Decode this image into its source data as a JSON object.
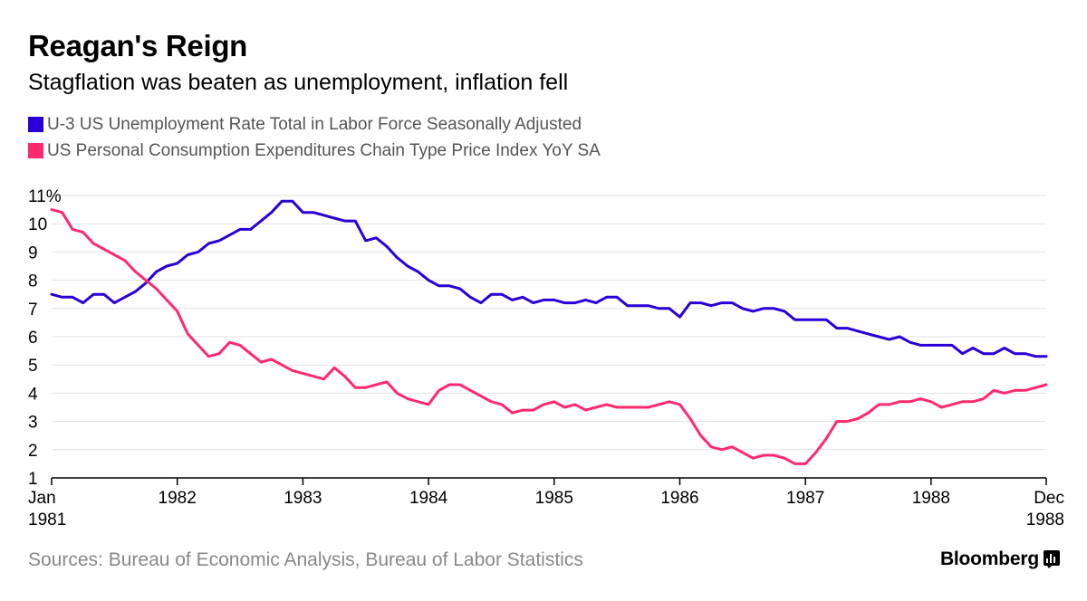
{
  "header": {
    "title": "Reagan's Reign",
    "subtitle": "Stagflation was beaten as unemployment, inflation fell"
  },
  "colors": {
    "series1": "#2800d7",
    "series2": "#ff2a6e",
    "grid": "#e2e2e2",
    "axis": "#000000"
  },
  "footer": {
    "source": "Sources: Bureau of Economic Analysis, Bureau of Labor Statistics",
    "brand": "Bloomberg",
    "brand_icon": "bloomberg-terminal-icon"
  },
  "chart_data": {
    "type": "line",
    "title": "Reagan's Reign",
    "subtitle": "Stagflation was beaten as unemployment, inflation fell",
    "x_range": [
      "1981-01",
      "1988-12"
    ],
    "ylim": [
      1,
      11
    ],
    "grid": true,
    "legend_position": "top-left",
    "y_ticks": [
      {
        "value": 11,
        "label": "11%"
      },
      {
        "value": 10,
        "label": "10"
      },
      {
        "value": 9,
        "label": "9"
      },
      {
        "value": 8,
        "label": "8"
      },
      {
        "value": 7,
        "label": "7"
      },
      {
        "value": 6,
        "label": "6"
      },
      {
        "value": 5,
        "label": "5"
      },
      {
        "value": 4,
        "label": "4"
      },
      {
        "value": 3,
        "label": "3"
      },
      {
        "value": 2,
        "label": "2"
      },
      {
        "value": 1,
        "label": "1"
      }
    ],
    "x_ticks": [
      {
        "date": "1981-01",
        "label": "Jan",
        "label2": "1981"
      },
      {
        "date": "1982-01",
        "label": "1982"
      },
      {
        "date": "1983-01",
        "label": "1983"
      },
      {
        "date": "1984-01",
        "label": "1984"
      },
      {
        "date": "1985-01",
        "label": "1985"
      },
      {
        "date": "1986-01",
        "label": "1986"
      },
      {
        "date": "1987-01",
        "label": "1987"
      },
      {
        "date": "1988-01",
        "label": "1988"
      },
      {
        "date": "1988-12",
        "label": "Dec",
        "label2": "1988"
      }
    ],
    "series": [
      {
        "name": "U-3 US Unemployment Rate Total in Labor Force Seasonally Adjusted",
        "color": "#2800d7",
        "points": [
          [
            "1981-01",
            7.5
          ],
          [
            "1981-02",
            7.4
          ],
          [
            "1981-03",
            7.4
          ],
          [
            "1981-04",
            7.2
          ],
          [
            "1981-05",
            7.5
          ],
          [
            "1981-06",
            7.5
          ],
          [
            "1981-07",
            7.2
          ],
          [
            "1981-08",
            7.4
          ],
          [
            "1981-09",
            7.6
          ],
          [
            "1981-10",
            7.9
          ],
          [
            "1981-11",
            8.3
          ],
          [
            "1981-12",
            8.5
          ],
          [
            "1982-01",
            8.6
          ],
          [
            "1982-02",
            8.9
          ],
          [
            "1982-03",
            9.0
          ],
          [
            "1982-04",
            9.3
          ],
          [
            "1982-05",
            9.4
          ],
          [
            "1982-06",
            9.6
          ],
          [
            "1982-07",
            9.8
          ],
          [
            "1982-08",
            9.8
          ],
          [
            "1982-09",
            10.1
          ],
          [
            "1982-10",
            10.4
          ],
          [
            "1982-11",
            10.8
          ],
          [
            "1982-12",
            10.8
          ],
          [
            "1983-01",
            10.4
          ],
          [
            "1983-02",
            10.4
          ],
          [
            "1983-03",
            10.3
          ],
          [
            "1983-04",
            10.2
          ],
          [
            "1983-05",
            10.1
          ],
          [
            "1983-06",
            10.1
          ],
          [
            "1983-07",
            9.4
          ],
          [
            "1983-08",
            9.5
          ],
          [
            "1983-09",
            9.2
          ],
          [
            "1983-10",
            8.8
          ],
          [
            "1983-11",
            8.5
          ],
          [
            "1983-12",
            8.3
          ],
          [
            "1984-01",
            8.0
          ],
          [
            "1984-02",
            7.8
          ],
          [
            "1984-03",
            7.8
          ],
          [
            "1984-04",
            7.7
          ],
          [
            "1984-05",
            7.4
          ],
          [
            "1984-06",
            7.2
          ],
          [
            "1984-07",
            7.5
          ],
          [
            "1984-08",
            7.5
          ],
          [
            "1984-09",
            7.3
          ],
          [
            "1984-10",
            7.4
          ],
          [
            "1984-11",
            7.2
          ],
          [
            "1984-12",
            7.3
          ],
          [
            "1985-01",
            7.3
          ],
          [
            "1985-02",
            7.2
          ],
          [
            "1985-03",
            7.2
          ],
          [
            "1985-04",
            7.3
          ],
          [
            "1985-05",
            7.2
          ],
          [
            "1985-06",
            7.4
          ],
          [
            "1985-07",
            7.4
          ],
          [
            "1985-08",
            7.1
          ],
          [
            "1985-09",
            7.1
          ],
          [
            "1985-10",
            7.1
          ],
          [
            "1985-11",
            7.0
          ],
          [
            "1985-12",
            7.0
          ],
          [
            "1986-01",
            6.7
          ],
          [
            "1986-02",
            7.2
          ],
          [
            "1986-03",
            7.2
          ],
          [
            "1986-04",
            7.1
          ],
          [
            "1986-05",
            7.2
          ],
          [
            "1986-06",
            7.2
          ],
          [
            "1986-07",
            7.0
          ],
          [
            "1986-08",
            6.9
          ],
          [
            "1986-09",
            7.0
          ],
          [
            "1986-10",
            7.0
          ],
          [
            "1986-11",
            6.9
          ],
          [
            "1986-12",
            6.6
          ],
          [
            "1987-01",
            6.6
          ],
          [
            "1987-02",
            6.6
          ],
          [
            "1987-03",
            6.6
          ],
          [
            "1987-04",
            6.3
          ],
          [
            "1987-05",
            6.3
          ],
          [
            "1987-06",
            6.2
          ],
          [
            "1987-07",
            6.1
          ],
          [
            "1987-08",
            6.0
          ],
          [
            "1987-09",
            5.9
          ],
          [
            "1987-10",
            6.0
          ],
          [
            "1987-11",
            5.8
          ],
          [
            "1987-12",
            5.7
          ],
          [
            "1988-01",
            5.7
          ],
          [
            "1988-02",
            5.7
          ],
          [
            "1988-03",
            5.7
          ],
          [
            "1988-04",
            5.4
          ],
          [
            "1988-05",
            5.6
          ],
          [
            "1988-06",
            5.4
          ],
          [
            "1988-07",
            5.4
          ],
          [
            "1988-08",
            5.6
          ],
          [
            "1988-09",
            5.4
          ],
          [
            "1988-10",
            5.4
          ],
          [
            "1988-11",
            5.3
          ],
          [
            "1988-12",
            5.3
          ]
        ]
      },
      {
        "name": "US Personal Consumption Expenditures Chain Type Price Index YoY SA",
        "color": "#ff2a6e",
        "points": [
          [
            "1981-01",
            10.5
          ],
          [
            "1981-02",
            10.4
          ],
          [
            "1981-03",
            9.8
          ],
          [
            "1981-04",
            9.7
          ],
          [
            "1981-05",
            9.3
          ],
          [
            "1981-06",
            9.1
          ],
          [
            "1981-07",
            8.9
          ],
          [
            "1981-08",
            8.7
          ],
          [
            "1981-09",
            8.3
          ],
          [
            "1981-10",
            8.0
          ],
          [
            "1981-11",
            7.7
          ],
          [
            "1981-12",
            7.3
          ],
          [
            "1982-01",
            6.9
          ],
          [
            "1982-02",
            6.1
          ],
          [
            "1982-03",
            5.7
          ],
          [
            "1982-04",
            5.3
          ],
          [
            "1982-05",
            5.4
          ],
          [
            "1982-06",
            5.8
          ],
          [
            "1982-07",
            5.7
          ],
          [
            "1982-08",
            5.4
          ],
          [
            "1982-09",
            5.1
          ],
          [
            "1982-10",
            5.2
          ],
          [
            "1982-11",
            5.0
          ],
          [
            "1982-12",
            4.8
          ],
          [
            "1983-01",
            4.7
          ],
          [
            "1983-02",
            4.6
          ],
          [
            "1983-03",
            4.5
          ],
          [
            "1983-04",
            4.9
          ],
          [
            "1983-05",
            4.6
          ],
          [
            "1983-06",
            4.2
          ],
          [
            "1983-07",
            4.2
          ],
          [
            "1983-08",
            4.3
          ],
          [
            "1983-09",
            4.4
          ],
          [
            "1983-10",
            4.0
          ],
          [
            "1983-11",
            3.8
          ],
          [
            "1983-12",
            3.7
          ],
          [
            "1984-01",
            3.6
          ],
          [
            "1984-02",
            4.1
          ],
          [
            "1984-03",
            4.3
          ],
          [
            "1984-04",
            4.3
          ],
          [
            "1984-05",
            4.1
          ],
          [
            "1984-06",
            3.9
          ],
          [
            "1984-07",
            3.7
          ],
          [
            "1984-08",
            3.6
          ],
          [
            "1984-09",
            3.3
          ],
          [
            "1984-10",
            3.4
          ],
          [
            "1984-11",
            3.4
          ],
          [
            "1984-12",
            3.6
          ],
          [
            "1985-01",
            3.7
          ],
          [
            "1985-02",
            3.5
          ],
          [
            "1985-03",
            3.6
          ],
          [
            "1985-04",
            3.4
          ],
          [
            "1985-05",
            3.5
          ],
          [
            "1985-06",
            3.6
          ],
          [
            "1985-07",
            3.5
          ],
          [
            "1985-08",
            3.5
          ],
          [
            "1985-09",
            3.5
          ],
          [
            "1985-10",
            3.5
          ],
          [
            "1985-11",
            3.6
          ],
          [
            "1985-12",
            3.7
          ],
          [
            "1986-01",
            3.6
          ],
          [
            "1986-02",
            3.1
          ],
          [
            "1986-03",
            2.5
          ],
          [
            "1986-04",
            2.1
          ],
          [
            "1986-05",
            2.0
          ],
          [
            "1986-06",
            2.1
          ],
          [
            "1986-07",
            1.9
          ],
          [
            "1986-08",
            1.7
          ],
          [
            "1986-09",
            1.8
          ],
          [
            "1986-10",
            1.8
          ],
          [
            "1986-11",
            1.7
          ],
          [
            "1986-12",
            1.5
          ],
          [
            "1987-01",
            1.5
          ],
          [
            "1987-02",
            1.9
          ],
          [
            "1987-03",
            2.4
          ],
          [
            "1987-04",
            3.0
          ],
          [
            "1987-05",
            3.0
          ],
          [
            "1987-06",
            3.1
          ],
          [
            "1987-07",
            3.3
          ],
          [
            "1987-08",
            3.6
          ],
          [
            "1987-09",
            3.6
          ],
          [
            "1987-10",
            3.7
          ],
          [
            "1987-11",
            3.7
          ],
          [
            "1987-12",
            3.8
          ],
          [
            "1988-01",
            3.7
          ],
          [
            "1988-02",
            3.5
          ],
          [
            "1988-03",
            3.6
          ],
          [
            "1988-04",
            3.7
          ],
          [
            "1988-05",
            3.7
          ],
          [
            "1988-06",
            3.8
          ],
          [
            "1988-07",
            4.1
          ],
          [
            "1988-08",
            4.0
          ],
          [
            "1988-09",
            4.1
          ],
          [
            "1988-10",
            4.1
          ],
          [
            "1988-11",
            4.2
          ],
          [
            "1988-12",
            4.3
          ]
        ]
      }
    ]
  }
}
